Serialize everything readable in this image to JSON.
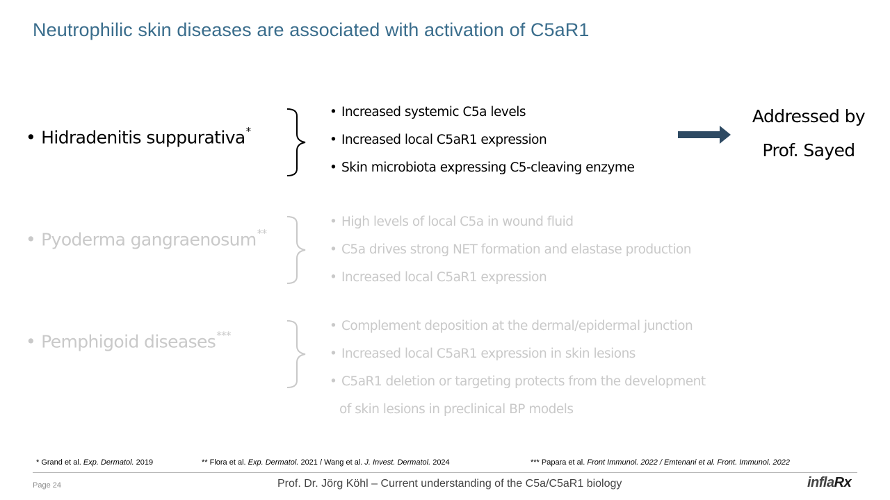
{
  "title": "Neutrophilic skin diseases are associated with activation of C5aR1",
  "bullet_char": "•",
  "diseases": [
    {
      "name": "Hidradenitis suppurativa",
      "ref_mark": "*",
      "findings": [
        "Increased systemic C5a levels",
        "Increased  local C5aR1 expression",
        "Skin microbiota expressing C5-cleaving enzyme"
      ]
    },
    {
      "name": "Pyoderma gangraenosum",
      "ref_mark": "**",
      "findings": [
        "High levels of local C5a in wound fluid",
        "C5a drives strong NET formation and elastase production",
        "Increased  local C5aR1 expression"
      ]
    },
    {
      "name": "Pemphigoid diseases",
      "ref_mark": "***",
      "findings": [
        "Complement deposition at the dermal/epidermal junction",
        "Increased  local C5aR1 expression in skin lesions",
        "C5aR1 deletion or targeting protects from the development",
        "of skin lesions in preclinical BP models"
      ]
    }
  ],
  "addressed": {
    "line1": "Addressed by",
    "line2": "Prof.  Sayed"
  },
  "references": {
    "ref1": {
      "pre": "* Grand et al. ",
      "journal": "Exp. Dermatol.",
      "post": " 2019"
    },
    "ref2": {
      "pre": "** Flora  et al. ",
      "journal1": "Exp. Dermatol.",
      "mid": "  2021 /  Wang et al. ",
      "journal2": "J. Invest. Dermatol.",
      "post": "  2024"
    },
    "ref3": {
      "pre": "*** Papara et al.  ",
      "rest": "Front Immunol. 2022 / Emtenani et al. Front. Immunol.  2022"
    }
  },
  "footer": {
    "page": "Page 24",
    "text": "Prof. Dr. Jörg Köhl – Current understanding of the C5a/C5aR1 biology",
    "logo_main": "infla",
    "logo_rx": "Rx"
  },
  "colors": {
    "title": "#3a6d8c",
    "arrow": "#2e4a63",
    "faded": "#c9c9c9"
  }
}
